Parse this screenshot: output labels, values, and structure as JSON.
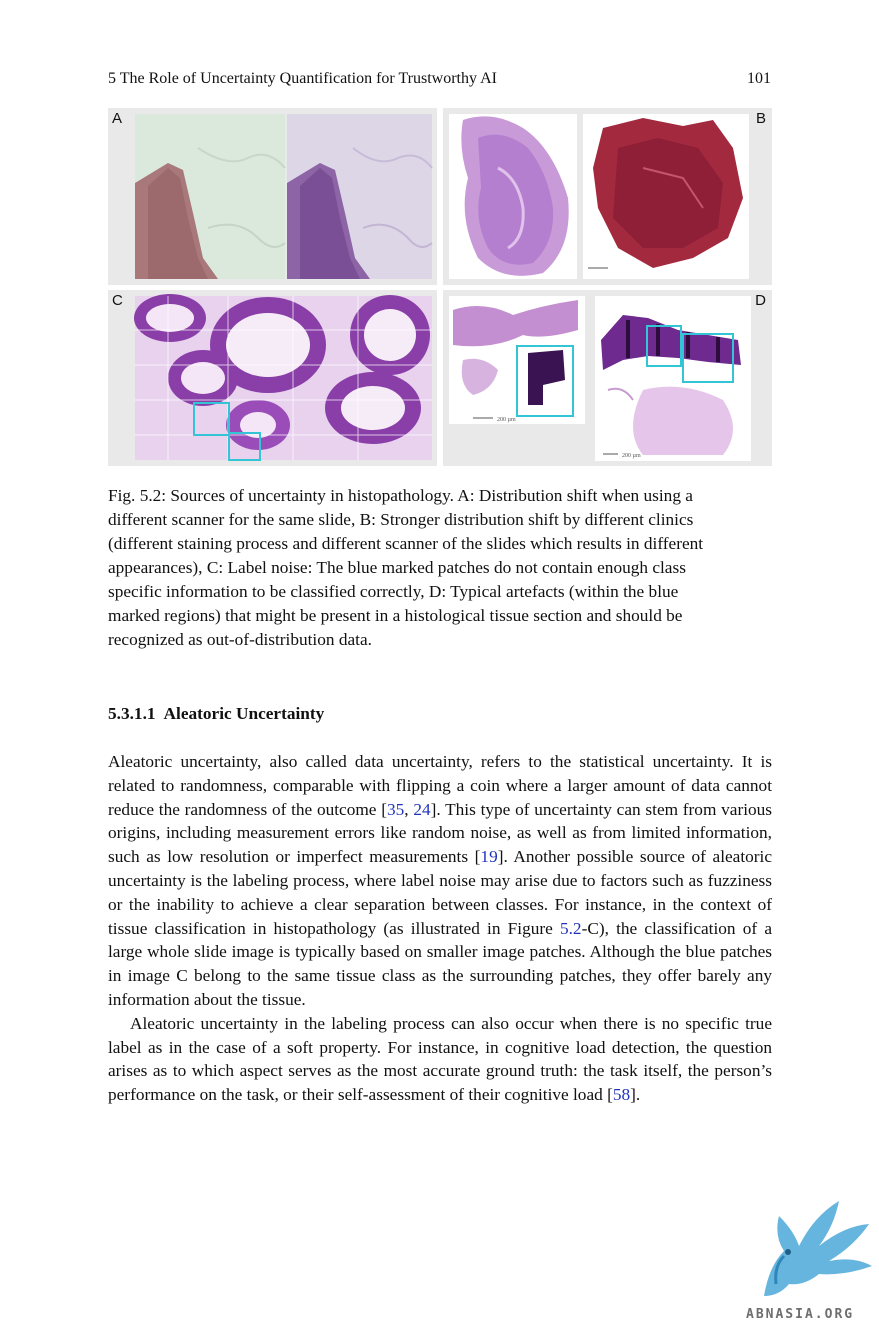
{
  "header": {
    "chapter_title": "5  The Role of Uncertainty Quantification for Trustworthy AI",
    "page_number": "101"
  },
  "figure": {
    "panels": [
      {
        "id": "A",
        "label": "A"
      },
      {
        "id": "B",
        "label": "B"
      },
      {
        "id": "C",
        "label": "C"
      },
      {
        "id": "D",
        "label": "D"
      }
    ],
    "scale_labels": {
      "d_left": "200 µm",
      "d_right": "200 µm"
    },
    "colors": {
      "panel_bg": "#e9e9e9",
      "highlight_box": "#33c4d6",
      "stain_purple": "#8a3ea8",
      "stain_pink": "#d98fd3",
      "tissue_dark_red": "#a3293f"
    }
  },
  "caption": {
    "lines": [
      "Fig. 5.2: Sources of uncertainty in histopathology. A: Distribution shift when using a",
      "different scanner for the same slide, B: Stronger distribution shift by different clinics",
      "(different staining process and different scanner of the slides which results in different",
      "appearances), C: Label noise: The blue marked patches do not contain enough class",
      "specific information to be classified correctly, D: Typical artefacts (within the blue",
      "marked regions) that might be present in a histological tissue section and should be",
      "recognized as out-of-distribution data."
    ]
  },
  "section": {
    "number": "5.3.1.1",
    "title": "Aleatoric Uncertainty"
  },
  "paragraph1": {
    "t1": "Aleatoric uncertainty, also called data uncertainty, refers to the statistical uncertainty. It is related to randomness, comparable with flipping a coin where a larger amount of data cannot reduce the randomness of the outcome [",
    "c1": "35",
    "sep1": ", ",
    "c2": "24",
    "t2": "]. This type of uncertainty can stem from various origins, including measurement errors like random noise, as well as from limited information, such as low resolution or imperfect measurements [",
    "c3": "19",
    "t3": "]. Another possible source of aleatoric uncertainty is the labeling process, where label noise may arise due to factors such as fuzziness or the inability to achieve a clear separation between classes. For instance, in the context of tissue classification in histopathology (as illustrated in Figure ",
    "c4": "5.2",
    "t4": "-C), the classification of a large whole slide image is typically based on smaller image patches. Although the blue patches in image C belong to the same tissue class as the surrounding patches, they offer barely any information about the tissue."
  },
  "paragraph2": {
    "t1": "Aleatoric uncertainty in the labeling process can also occur when there is no specific true label as in the case of a soft property. For instance, in cognitive load detection, the question arises as to which aspect serves as the most accurate ground truth: the task itself, the person’s performance on the task, or their self-assessment of their cognitive load [",
    "c1": "58",
    "t2": "]."
  },
  "watermark": {
    "text": "ABNASIA.ORG",
    "color": "#4aa8d8"
  }
}
